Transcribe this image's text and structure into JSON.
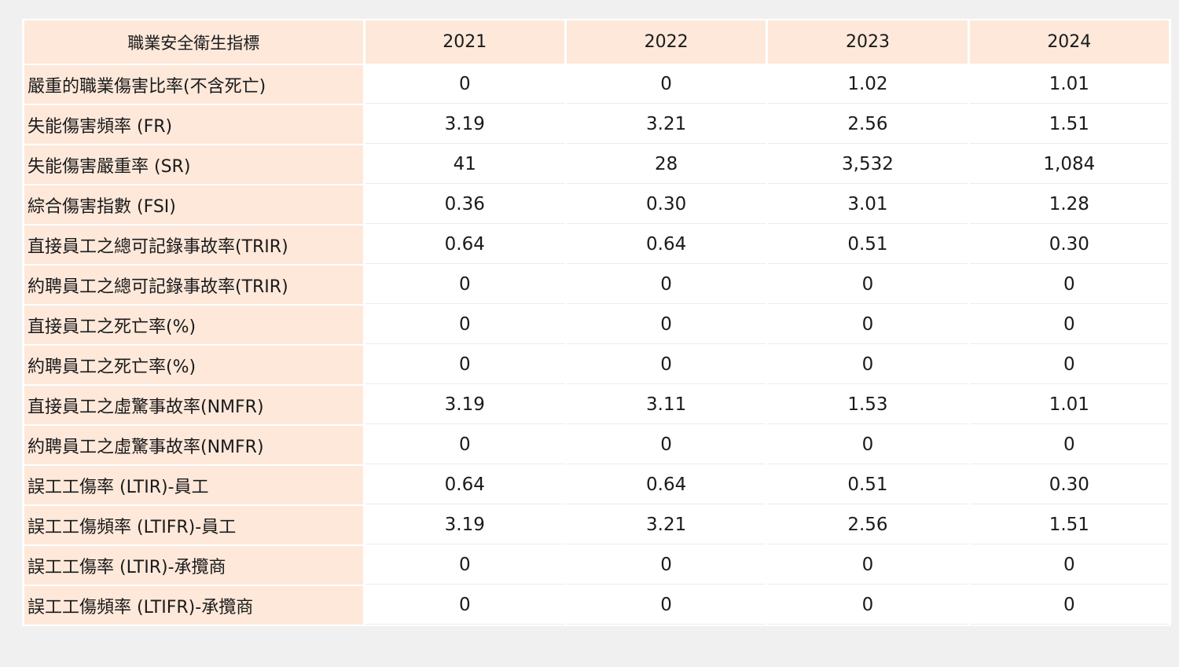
{
  "table": {
    "header": {
      "label": "職業安全衛生指標",
      "years": [
        "2021",
        "2022",
        "2023",
        "2024"
      ]
    },
    "rows": [
      {
        "label": "嚴重的職業傷害比率(不含死亡)",
        "values": [
          "0",
          "0",
          "1.02",
          "1.01"
        ]
      },
      {
        "label": "失能傷害頻率 (FR)",
        "values": [
          "3.19",
          "3.21",
          "2.56",
          "1.51"
        ]
      },
      {
        "label": "失能傷害嚴重率 (SR)",
        "values": [
          "41",
          "28",
          "3,532",
          "1,084"
        ]
      },
      {
        "label": "綜合傷害指數 (FSI)",
        "values": [
          "0.36",
          "0.30",
          "3.01",
          "1.28"
        ]
      },
      {
        "label": "直接員工之總可記錄事故率(TRIR)",
        "values": [
          "0.64",
          "0.64",
          "0.51",
          "0.30"
        ]
      },
      {
        "label": "約聘員工之總可記錄事故率(TRIR)",
        "values": [
          "0",
          "0",
          "0",
          "0"
        ]
      },
      {
        "label": "直接員工之死亡率(%)",
        "values": [
          "0",
          "0",
          "0",
          "0"
        ]
      },
      {
        "label": "約聘員工之死亡率(%)",
        "values": [
          "0",
          "0",
          "0",
          "0"
        ]
      },
      {
        "label": "直接員工之虛驚事故率(NMFR)",
        "values": [
          "3.19",
          "3.11",
          "1.53",
          "1.01"
        ]
      },
      {
        "label": "約聘員工之虛驚事故率(NMFR)",
        "values": [
          "0",
          "0",
          "0",
          "0"
        ]
      },
      {
        "label": "誤工工傷率 (LTIR)-員工",
        "values": [
          "0.64",
          "0.64",
          "0.51",
          "0.30"
        ]
      },
      {
        "label": "誤工工傷頻率 (LTIFR)-員工",
        "values": [
          "3.19",
          "3.21",
          "2.56",
          "1.51"
        ]
      },
      {
        "label": "誤工工傷率 (LTIR)-承攬商",
        "values": [
          "0",
          "0",
          "0",
          "0"
        ]
      },
      {
        "label": "誤工工傷頻率 (LTIFR)-承攬商",
        "values": [
          "0",
          "0",
          "0",
          "0"
        ]
      }
    ]
  },
  "colors": {
    "header_bg": "#fde8da",
    "label_bg": "#fde8da",
    "cell_bg": "#ffffff",
    "page_bg": "#f0f0f0"
  }
}
